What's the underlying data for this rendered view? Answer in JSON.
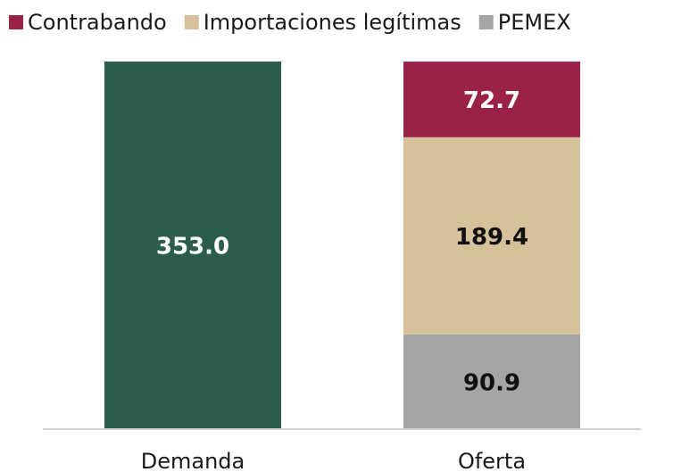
{
  "chart_data": {
    "type": "stacked_bar",
    "categories": [
      "Demanda",
      "Oferta"
    ],
    "series": [
      {
        "color": "#2b5c4c",
        "values": [
          353.0,
          null
        ],
        "value_labels": [
          "353.0",
          null
        ]
      },
      {
        "name": "Contrabando",
        "color": "#9b2247",
        "values": [
          null,
          72.7
        ],
        "value_labels": [
          null,
          "72.7"
        ]
      },
      {
        "name": "Importaciones legítimas",
        "color": "#d6c29a",
        "values": [
          null,
          189.4
        ],
        "value_labels": [
          null,
          "189.4"
        ]
      },
      {
        "name": "PEMEX",
        "color": "#a5a5a5",
        "values": [
          null,
          90.9
        ],
        "value_labels": [
          null,
          "90.9"
        ]
      }
    ],
    "legend": "top"
  }
}
